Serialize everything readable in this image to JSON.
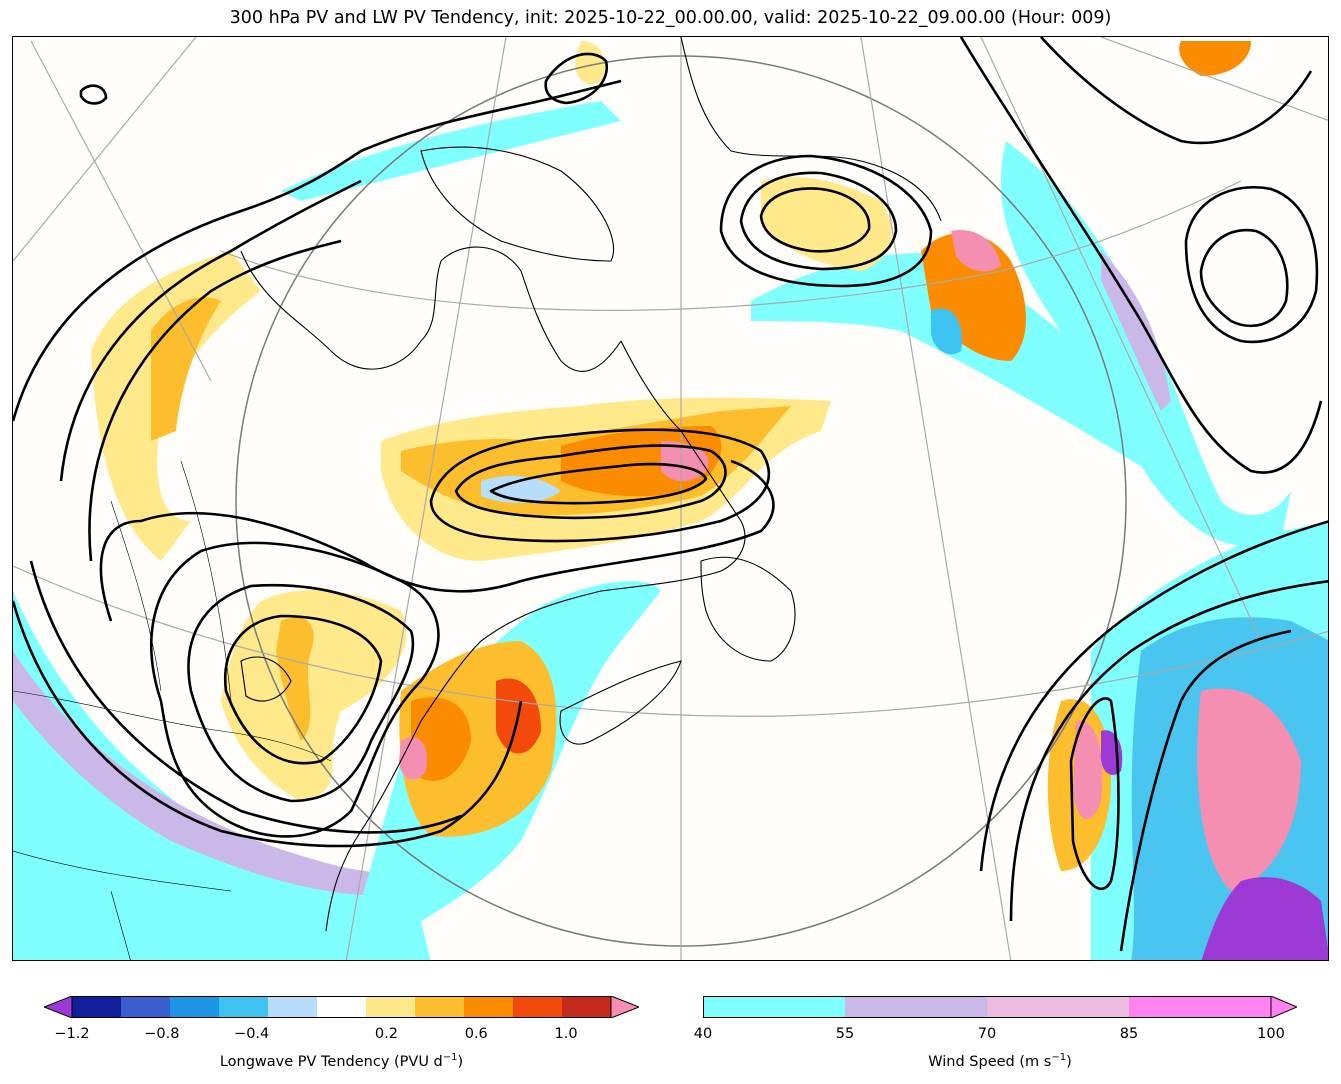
{
  "title": "300 hPa PV and LW PV Tendency, init: 2025-10-22_00.00.00, valid: 2025-10-22_09.00.00 (Hour: 009)",
  "colorbars": {
    "pv_tendency": {
      "label": "Longwave PV Tendency (PVU d",
      "label_exponent": "−1",
      "label_close": ")",
      "ticks": [
        "−1.2",
        "−0.8",
        "−0.4",
        "0.2",
        "0.6",
        "1.0"
      ],
      "tick_values": [
        -1.2,
        -0.8,
        -0.4,
        0.2,
        0.6,
        1.0
      ],
      "levels": [
        -1.2,
        -1.0,
        -0.8,
        -0.6,
        -0.4,
        -0.2,
        0.2,
        0.4,
        0.6,
        0.8,
        1.0,
        1.2
      ],
      "colors": [
        "#0f1f9a",
        "#3b5fcf",
        "#1c96e4",
        "#3cc3f2",
        "#b6defa",
        "#ffffff",
        "#ffe98a",
        "#fdbe2d",
        "#fb8c00",
        "#f24a0a",
        "#c42a1a"
      ],
      "under_color": "#9d3ad6",
      "over_color": "#f48fb1"
    },
    "wind_speed": {
      "label": "Wind Speed (m s",
      "label_exponent": "−1",
      "label_close": ")",
      "ticks": [
        "40",
        "55",
        "70",
        "85",
        "100"
      ],
      "tick_values": [
        40,
        55,
        70,
        85,
        100
      ],
      "colors": [
        "#80ffff",
        "#c9b8e8",
        "#ecbcdf",
        "#ff82f0"
      ],
      "over_color": "#ff82f0"
    }
  }
}
